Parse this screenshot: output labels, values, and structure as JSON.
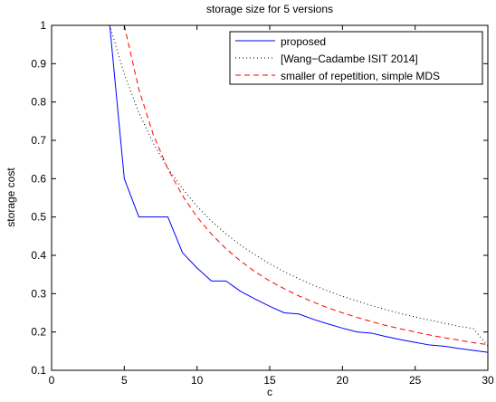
{
  "chart_data": {
    "type": "line",
    "title": "storage size for 5 versions",
    "xlabel": "c",
    "ylabel": "storage cost",
    "xlim": [
      0,
      30
    ],
    "ylim": [
      0.1,
      1
    ],
    "xticks": [
      0,
      5,
      10,
      15,
      20,
      25,
      30
    ],
    "yticks": [
      0.1,
      0.2,
      0.3,
      0.4,
      0.5,
      0.6,
      0.7,
      0.8,
      0.9,
      1
    ],
    "xtick_labels": [
      "0",
      "5",
      "10",
      "15",
      "20",
      "25",
      "30"
    ],
    "ytick_labels": [
      "0.1",
      "0.2",
      "0.3",
      "0.4",
      "0.5",
      "0.6",
      "0.7",
      "0.8",
      "0.9",
      "1"
    ],
    "grid": false,
    "legend_position": "top-right",
    "series": [
      {
        "name": "proposed",
        "color": "#0000ff",
        "style": "solid",
        "x": [
          0,
          4,
          5,
          6,
          7,
          8,
          9,
          10,
          11,
          12,
          13,
          14,
          15,
          16,
          17,
          18,
          19,
          20,
          21,
          22,
          23,
          24,
          25,
          26,
          27,
          28,
          29,
          30
        ],
        "y": [
          1,
          1,
          0.6,
          0.5,
          0.5,
          0.5,
          0.407,
          0.367,
          0.333,
          0.333,
          0.306,
          0.286,
          0.267,
          0.25,
          0.247,
          0.233,
          0.221,
          0.21,
          0.2,
          0.197,
          0.188,
          0.18,
          0.173,
          0.166,
          0.163,
          0.157,
          0.152,
          0.147
        ]
      },
      {
        "name": "[Wang−Cadambe ISIT 2014]",
        "color": "#000000",
        "style": "dotted",
        "x": [
          0,
          4,
          5,
          6,
          7,
          8,
          9,
          10,
          11,
          12,
          13,
          14,
          15,
          16,
          17,
          18,
          19,
          20,
          21,
          22,
          23,
          24,
          25,
          26,
          27,
          28,
          29,
          30
        ],
        "y": [
          1,
          1,
          0.873,
          0.772,
          0.692,
          0.627,
          0.574,
          0.528,
          0.489,
          0.456,
          0.426,
          0.401,
          0.378,
          0.357,
          0.339,
          0.322,
          0.307,
          0.293,
          0.281,
          0.269,
          0.258,
          0.248,
          0.239,
          0.231,
          0.223,
          0.215,
          0.209,
          0.164
        ]
      },
      {
        "name": "smaller of repetition, simple MDS",
        "color": "#ff0000",
        "style": "dashed",
        "x": [
          0,
          5,
          6,
          7,
          8,
          9,
          10,
          11,
          12,
          13,
          14,
          15,
          16,
          17,
          18,
          19,
          20,
          21,
          22,
          23,
          24,
          25,
          26,
          27,
          28,
          29,
          30
        ],
        "y": [
          1,
          1,
          0.833,
          0.714,
          0.625,
          0.556,
          0.5,
          0.455,
          0.417,
          0.385,
          0.357,
          0.333,
          0.313,
          0.294,
          0.278,
          0.263,
          0.25,
          0.238,
          0.227,
          0.217,
          0.208,
          0.2,
          0.192,
          0.185,
          0.179,
          0.172,
          0.167
        ]
      }
    ]
  }
}
